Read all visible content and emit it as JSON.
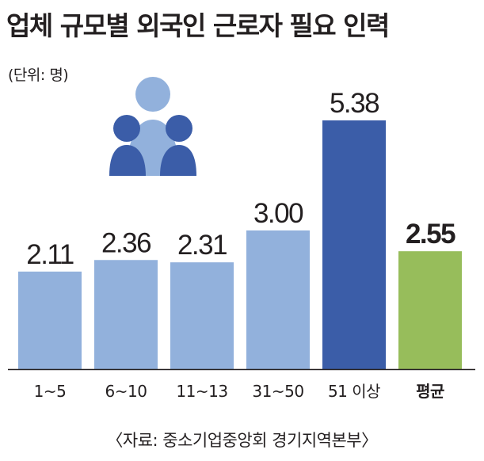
{
  "title": "업체 규모별 외국인 근로자 필요 인력",
  "unit": "(단위: 명)",
  "source": "〈자료: 중소기업중앙회 경기지역본부〉",
  "colors": {
    "bar_light": "#92b1dc",
    "bar_highlight": "#3b5da8",
    "bar_average": "#97bd5b",
    "axis": "#231f20",
    "icon_center": "#92b1dc",
    "icon_side": "#3b5da8"
  },
  "icon": "people-group-icon",
  "chart_data": {
    "type": "bar",
    "categories": [
      "1~5",
      "6~10",
      "11~13",
      "31~50",
      "51 이상",
      "평균"
    ],
    "values": [
      2.11,
      2.36,
      2.31,
      3.0,
      5.38,
      2.55
    ],
    "value_labels": [
      "2.11",
      "2.36",
      "2.31",
      "3.00",
      "5.38",
      "2.55"
    ],
    "highlight_index": 4,
    "average_index": 5,
    "ylim": [
      0,
      5.38
    ]
  }
}
